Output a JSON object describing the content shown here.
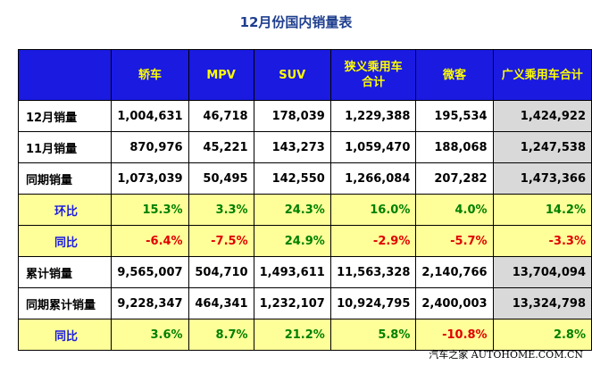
{
  "title": "12月份国内销量表",
  "headers": [
    "",
    "轿车",
    "MPV",
    "SUV",
    "狭义乘用车合计",
    "微客",
    "广义乘用车合计"
  ],
  "header_lines": [
    [
      ""
    ],
    [
      "轿车"
    ],
    [
      "MPV"
    ],
    [
      "SUV"
    ],
    [
      "狭义乘用车",
      "合计"
    ],
    [
      "微客"
    ],
    [
      "广义乘用车合计"
    ]
  ],
  "rows": [
    {
      "label": "12月销量",
      "kind": "num",
      "values": [
        "1,004,631",
        "46,718",
        "178,039",
        "1,229,388",
        "195,534",
        "1,424,922"
      ]
    },
    {
      "label": "11月销量",
      "kind": "num",
      "values": [
        "870,976",
        "45,221",
        "143,273",
        "1,059,470",
        "188,068",
        "1,247,538"
      ]
    },
    {
      "label": "同期销量",
      "kind": "num",
      "values": [
        "1,073,039",
        "50,495",
        "142,550",
        "1,266,084",
        "207,282",
        "1,473,366"
      ]
    },
    {
      "label": "环比",
      "kind": "pct",
      "values": [
        "15.3%",
        "3.3%",
        "24.3%",
        "16.0%",
        "4.0%",
        "14.2%"
      ]
    },
    {
      "label": "同比",
      "kind": "pct",
      "values": [
        "-6.4%",
        "-7.5%",
        "24.9%",
        "-2.9%",
        "-5.7%",
        "-3.3%"
      ]
    },
    {
      "label": "累计销量",
      "kind": "num",
      "values": [
        "9,565,007",
        "504,710",
        "1,493,611",
        "11,563,328",
        "2,140,766",
        "13,704,094"
      ]
    },
    {
      "label": "同期累计销量",
      "kind": "num",
      "values": [
        "9,228,347",
        "464,341",
        "1,232,107",
        "10,924,795",
        "2,400,003",
        "13,324,798"
      ]
    },
    {
      "label": "同比",
      "kind": "pct",
      "values": [
        "3.6%",
        "8.7%",
        "21.2%",
        "5.8%",
        "-10.8%",
        "2.8%"
      ]
    }
  ],
  "colors": {
    "header_bg": "#1a1ae0",
    "header_text": "#ffff00",
    "pct_row_bg": "#ffff99",
    "positive": "#008000",
    "negative": "#e00000",
    "total_col_bg": "#d9d9d9"
  },
  "watermark": "汽车之家 AUTOHOME.COM.CN"
}
